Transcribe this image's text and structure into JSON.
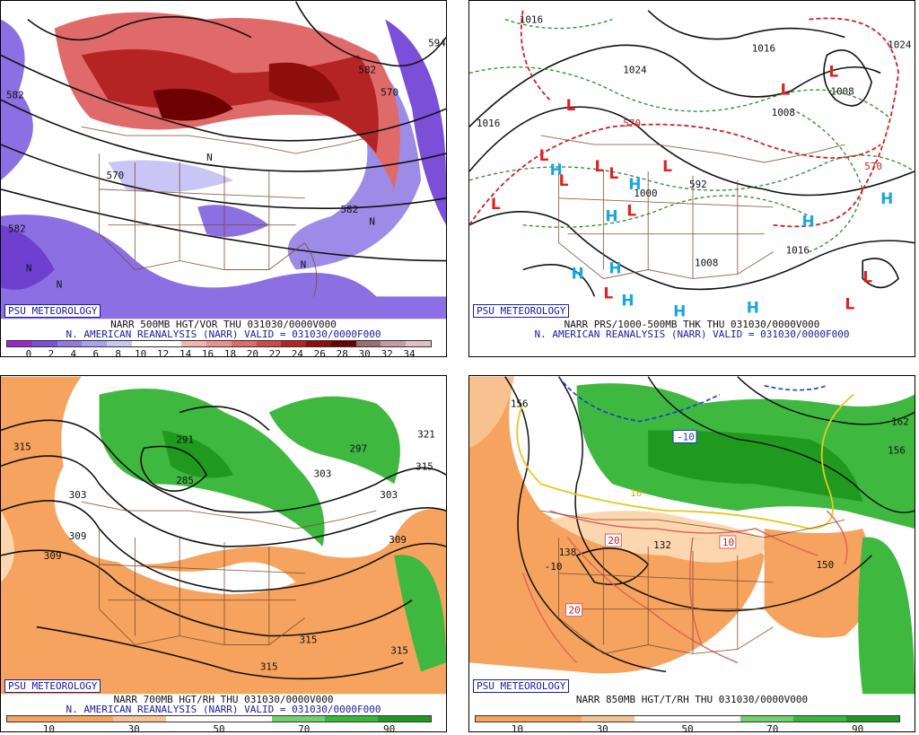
{
  "panels": [
    {
      "tag": "PSU METEOROLOGY",
      "title_line1": "NARR 500MB HGT/VOR THU 031030/0000V000",
      "title_line2": "N. AMERICAN REANALYSIS (NARR) VALID = 031030/0000F000",
      "legend_colors": [
        "#9c27c6",
        "#7b4fd8",
        "#8f7ae6",
        "#a7a2ef",
        "#c9c6f5",
        "#ffffff",
        "#ffffff",
        "#f6b1b1",
        "#ef8e8e",
        "#e06a6a",
        "#d04848",
        "#b52424",
        "#8e0e0e",
        "#6d0000",
        "#9b6f75",
        "#c79aa3",
        "#e4bfc7"
      ],
      "legend_ticks": [
        "0",
        "2",
        "4",
        "6",
        "8",
        "10",
        "12",
        "14",
        "16",
        "18",
        "20",
        "22",
        "24",
        "26",
        "28",
        "30",
        "32",
        "34"
      ],
      "map_labels": [
        "582",
        "570",
        "582",
        "594",
        "570",
        "582",
        "582",
        "N",
        "N",
        "N",
        "N",
        "N"
      ]
    },
    {
      "tag": "PSU METEOROLOGY",
      "title_line1": "NARR PRS/1000-500MB THK THU 031030/0000V000",
      "title_line2": "N. AMERICAN REANALYSIS (NARR) VALID = 031030/0000F000",
      "map_labels": [
        "1016",
        "1016",
        "1024",
        "1008",
        "1016",
        "1000",
        "1008",
        "1016",
        "570",
        "570",
        "592",
        "1024",
        "1008"
      ],
      "highs": [
        "H",
        "H",
        "H",
        "H",
        "H",
        "H",
        "H",
        "H",
        "H",
        "H"
      ],
      "lows": [
        "L",
        "L",
        "L",
        "L",
        "L",
        "L",
        "L",
        "L",
        "L",
        "L",
        "L",
        "L",
        "L"
      ]
    },
    {
      "tag": "PSU METEOROLOGY",
      "title_line1": "NARR 700MB HGT/RH THU 031030/0000V000",
      "title_line2": "N. AMERICAN REANALYSIS (NARR) VALID = 031030/0000F000",
      "legend_colors": [
        "#f5a35e",
        "#f5a35e",
        "#f8c290",
        "#ffffff",
        "#ffffff",
        "#6fd26f",
        "#39b739",
        "#1f9a1f"
      ],
      "legend_ticks": [
        "10",
        "30",
        "50",
        "70",
        "90"
      ],
      "map_labels": [
        "315",
        "291",
        "285",
        "309",
        "303",
        "309",
        "315",
        "321",
        "303",
        "309",
        "315",
        "315",
        "315",
        "297",
        "303"
      ]
    },
    {
      "tag": "PSU METEOROLOGY",
      "title_line1": "NARR 850MB HGT/T/RH THU 031030/0000V000",
      "legend_colors": [
        "#f5a35e",
        "#f5a35e",
        "#f8c290",
        "#ffffff",
        "#ffffff",
        "#6fd26f",
        "#39b739",
        "#1f9a1f"
      ],
      "legend_ticks": [
        "10",
        "30",
        "50",
        "70",
        "90"
      ],
      "map_labels": [
        "156",
        "-10",
        "162",
        "156",
        "10",
        "20",
        "10",
        "138",
        "132",
        "20",
        "150",
        "-10"
      ]
    }
  ]
}
